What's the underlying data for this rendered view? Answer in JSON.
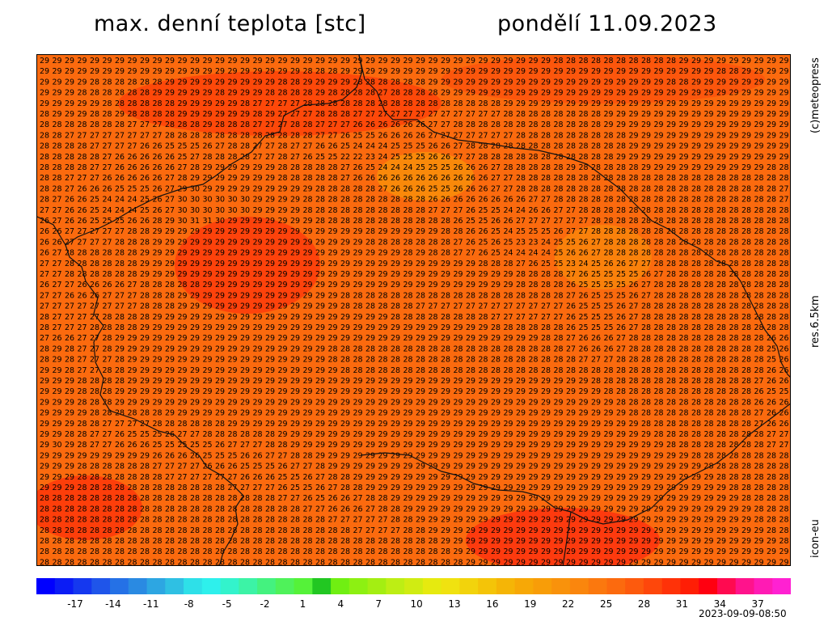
{
  "title_left": "max. denní teplota [stc]",
  "title_right": "pondělí 11.09.2023",
  "side_labels": {
    "copyright": "(c)meteopress",
    "resolution": "res.6.5km",
    "model": "icon-eu"
  },
  "timestamp": "2023-09-09-08:50",
  "colorbar": {
    "labels": [
      "-17",
      "-14",
      "-11",
      "-8",
      "-5",
      "-2",
      "1",
      "4",
      "7",
      "10",
      "13",
      "16",
      "19",
      "22",
      "25",
      "28",
      "31",
      "34",
      "37"
    ],
    "colors": [
      "#0000ff",
      "#0b1cf5",
      "#1538ef",
      "#1f55ea",
      "#2571e6",
      "#2a8ae2",
      "#2da6e2",
      "#2fc0e3",
      "#2ee0e8",
      "#2ef0ec",
      "#33f3cc",
      "#3cf3a6",
      "#44f27f",
      "#4ff25a",
      "#55f239",
      "#22c722",
      "#70ef12",
      "#8df012",
      "#a4ee12",
      "#bdee14",
      "#d0ec12",
      "#e6ea0f",
      "#f0e210",
      "#f2d30c",
      "#f4c408",
      "#f5b506",
      "#f7a806",
      "#f89d08",
      "#f9920b",
      "#fa860d",
      "#fb780e",
      "#fc6a0e",
      "#fd5a0d",
      "#fe470b",
      "#ff3208",
      "#ff1e05",
      "#ff0010",
      "#ff0a50",
      "#ff138c",
      "#ff1bb4",
      "#ff21d2"
    ]
  },
  "map_values": {
    "rows": [
      "29292929292929292929292929292929292929292929292929292929292929292929292929292929292828282828282828282829292929292929292929",
      "29292929292929292929292929292929292929292928282829292929292929292929292929292929292929292929292929292929292928282929292929",
      "29292929282828282828292929292929292929282829292929282828282828292929292929292929292929292929292929292828292929292929292929",
      "29292928282828282829292929292829292928282828292828282827282828282929292929292929292929292929292929292929292929292929292929",
      "29292929292828282828282929292929282727272728282828282828282828282828282828292929292929292929292929292929292929292929292929",
      "28292929282829282828282929292929292829272727282828272727272727272727272727282828282828282829292929292929292929292929292929",
      "28282828282828272727282828292828282727272828272727262626262626272728282828282828282828282829292929292929292929292929292929",
      "28282727272727272727282828282828282828282828272726252526262626272727272727272828282828282828282929292929292929292929292929",
      "28282828272727272626252525262728282727282727262625242424252525262627282828282828282828282828282929292929292929292929292929",
      "28282828282726262626262527282828282727282726252522222324252525262627272828282828282828282828292929292929292929292929292929",
      "28282828272726262626262728292929292929282828282827262524242425252526262627282828282829282828282829292929292929292929282828",
      "28282727272626262626272829292929292929282828282827262626262626262626262627272828282828282828282828282828282828282828282828",
      "28282726262625252526272930292929292929292929282828282827262626252526262627272828282828282828282828282828282828282828282727",
      "28272626252424242526273030303030302929292928282828282828282828262626262626262627272828282828282828282828282828282828282727",
      "27272626252424242526273030303030302929292928282828282828282828272727262525242426262727282828282828282828282828282828282828",
      "26272626252525262628293031313029292929292929282828282828282828282826252526262727272727272828282828282828282828282828282828",
      "26262727272727282829292929292929292929292929292929292829292929292828262625242525252627272828282828282828282828282828282828",
      "26262727272728282829292929292929292929292929292929292828282828282827262526252323242525262728282828282828282828282828282828",
      "26272828282828282929292929292929292929292929292929292929292829282827272625242424242526262728282828282828282828282828282828",
      "27272828282828282929292929292929292929292929292929292929292929292929292828282726252523242526262727282828282828282828282828",
      "27272828282828282929292929292929292929292929292929292929292929292929292929292828282827262525252526272828282828282828282828",
      "26272726262626272828282828292929292929292929292929292929292929292929292929292828282826252525252627282828282828282828282828",
      "27272626262727272828282929292929292929292929292928282828282828282828282828282828282827262525252627282828282828282828282828",
      "27272727272727272828282929292929292929292929292928282828282827272727272727272727272726252525262728282828282828282828282828",
      "28272727272828282829292929292929292929292929292929292929282828282828282827272727272726252525262728282828282828282828282828",
      "28272727282828282929292929292929292929292929292929292929292929292929292928282828282826252525262728282828282828282828282828",
      "27262627272829292929292929292929292929292929292929292929292929292929292929292929282827262626272828282828282828282828262626",
      "28292827272829292929292929292929292929292929292828282828282828282828282828282828282827262626272828282828282828282828252626",
      "28292827272728292929292929292929292929292929292828282828282828282828282828282828282828272727282828282828282828282828252626",
      "29292827272828292929292929292929292929292929292928282828282828282828282828282828282828282828282828282828282828282828262626",
      "29292928282828292929292929292929292929292929292929292929292929292929292929292929292929292828282828282828282828282827262626",
      "29292928282829292929292929292929292929292929292929292929292929292929292929292929292929292928282828282828282828282826252525",
      "29292928282829292929292929292929292929292929292929292929292929292929292929292929292929292929282828282828282828282826262626",
      "29292929282828282828292929292929292929292929292929292929292929292929292929292929292929292929292828282828282828282827262626",
      "29292928282727272728282828282829292929292929292929292929292929292929292929292929292929292929292928282828282828282827262626",
      "29292828272726252525262727282828282828292929292929292929292929292929292929292929292929292929292929282828282828282828272727",
      "29302928272726262625252525252627272728282929292929292929292929292929292929292929292929292929292929292828282828282828272727",
      "29292929292929292926262626252525262627272828292929292929292929292929292929292929292929292929292929292929282828282828282828",
      "29292928282828282827272727262626252525262727282929292929292929292929292929292929292929292929292929292929292828282828282828",
      "29292928282828282828272727272727262626252526272828292929292929292929292929292929292929292929292929292929292928282828282828",
      "29292928282828282828282828282827272727262525262728282929292929292929292929292929292929292929292929292929292929282828282828",
      "28282828282828282828282828282828282828272726252626272828292929292929292929292929292929292929292929292929292929292828282828",
      "28282828282828282828282828282828282828282827272626262728282929292929292929292929292929292929292929292929292929292928282828",
      "28282828282828282828282828282828282828282828282727272727282829292929292929292929292929292929292929292929292929292928282828",
      "28282828282828282828282828282828282828282828282828272727272828292929292929292929292929292929292929292929292929292929282828",
      "28282828282828282828282828282828282828282828282828282828282828282929292929292929292929292929292929292929292929292929292828",
      "28282828282828282828282828282828282828282828282828282828282828282829292929292929292929292929292929292929292929292929292928",
      "28282828282828282828282828282828282828282828282828282828282828282828292929292929292929292929292929292929292929292929292929"
    ]
  }
}
